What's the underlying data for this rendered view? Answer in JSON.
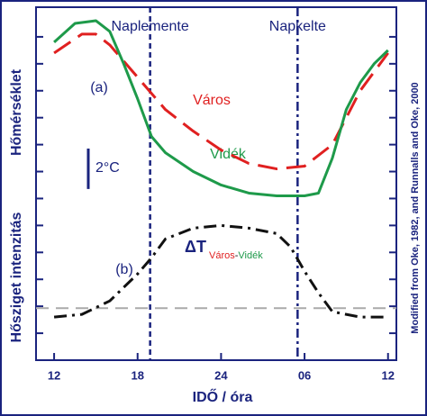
{
  "chart_data": {
    "type": "line",
    "x_label": "IDŐ / óra",
    "y_labels": [
      "Hőmérséklet",
      "Hősziget intenzitás"
    ],
    "source": "Modified from Oke, 1982, and Runnalls and Oke, 2000",
    "panel_labels": [
      "(a)",
      "(b)"
    ],
    "xlim": [
      10.7,
      36.6
    ],
    "xticks": [
      12,
      18,
      24,
      {
        "value": 30,
        "label": "06"
      },
      {
        "value": 36,
        "label": "12"
      }
    ],
    "ylim": [
      0,
      13.1
    ],
    "yticks": [
      1,
      2,
      3,
      4,
      5,
      6,
      7,
      8,
      9,
      10,
      11,
      12
    ],
    "series": [
      {
        "name": "Város",
        "color": "#e02020",
        "dash": "dashed",
        "x": [
          12,
          14,
          15,
          16,
          18,
          20,
          22,
          24,
          26,
          28,
          30,
          32,
          34,
          36
        ],
        "values": [
          11.4,
          12.1,
          12.1,
          11.7,
          10.5,
          9.3,
          8.5,
          7.8,
          7.3,
          7.1,
          7.2,
          8,
          10,
          11.4
        ]
      },
      {
        "name": "Vidék",
        "color": "#1e9a4a",
        "dash": "solid",
        "x": [
          12,
          13.5,
          15,
          16,
          17,
          18,
          19,
          20,
          22,
          24,
          26,
          28,
          30,
          31,
          32,
          33,
          34,
          35,
          36
        ],
        "values": [
          11.8,
          12.5,
          12.6,
          12.2,
          11,
          9.7,
          8.3,
          7.7,
          7,
          6.5,
          6.2,
          6.1,
          6.1,
          6.2,
          7.5,
          9.3,
          10.3,
          11,
          11.5
        ]
      },
      {
        "name": "ΔT",
        "color": "#111111",
        "dash": "dashdot",
        "x": [
          12,
          14,
          16,
          18,
          19,
          20,
          22,
          24,
          26,
          28,
          29,
          30,
          31,
          32,
          34,
          36
        ],
        "values": [
          1.6,
          1.7,
          2.2,
          3.2,
          3.8,
          4.5,
          4.9,
          5,
          4.9,
          4.7,
          4.2,
          3.3,
          2.5,
          1.8,
          1.6,
          1.6
        ]
      }
    ],
    "subscript_separator": "-",
    "vlines": [
      {
        "x": 18.9,
        "label": "Naplemente"
      },
      {
        "x": 29.5,
        "label": "Napkelte"
      }
    ],
    "reference_line": {
      "y": 1.93,
      "color": "#aaaaaa"
    },
    "scale_bar": {
      "label": "2°C",
      "length": 1.5
    }
  }
}
